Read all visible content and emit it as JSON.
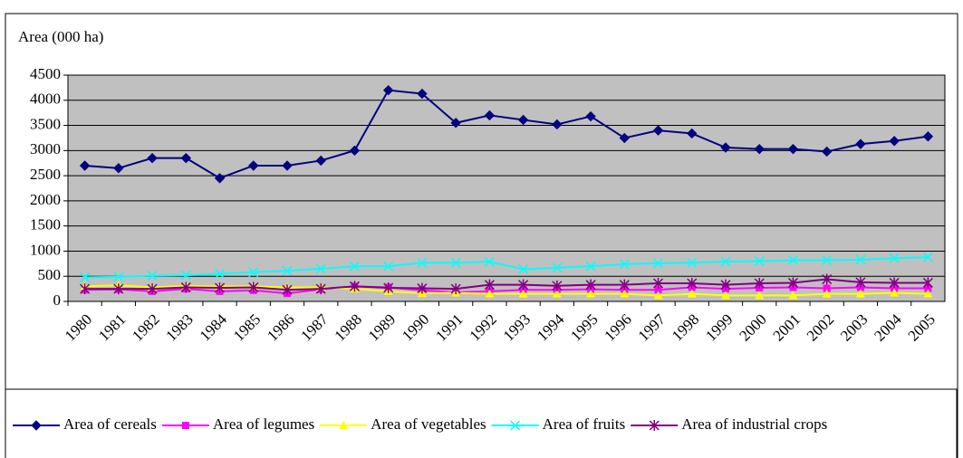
{
  "chart_data": {
    "type": "line",
    "y_label": "Area (000 ha)",
    "categories": [
      "1980",
      "1981",
      "1982",
      "1983",
      "1984",
      "1985",
      "1986",
      "1987",
      "1988",
      "1989",
      "1990",
      "1991",
      "1992",
      "1993",
      "1994",
      "1995",
      "1996",
      "1997",
      "1998",
      "1999",
      "2000",
      "2001",
      "2002",
      "2003",
      "2004",
      "2005"
    ],
    "ylim": [
      0,
      4500
    ],
    "yticks": [
      0,
      500,
      1000,
      1500,
      2000,
      2500,
      3000,
      3500,
      4000,
      4500
    ],
    "grid": true,
    "plot_background": "#c0c0c0",
    "legend": "bottom",
    "series": [
      {
        "name": "Area of cereals",
        "color": "#000080",
        "marker": "diamond",
        "values": [
          2700,
          2650,
          2850,
          2850,
          2450,
          2700,
          2700,
          2800,
          3000,
          4200,
          4130,
          3550,
          3700,
          3610,
          3520,
          3680,
          3250,
          3400,
          3340,
          3060,
          3030,
          3030,
          2980,
          3130,
          3190,
          3280
        ]
      },
      {
        "name": "Area of legumes",
        "color": "#ff00ff",
        "marker": "square",
        "values": [
          230,
          240,
          200,
          250,
          200,
          220,
          160,
          240,
          300,
          280,
          220,
          180,
          200,
          230,
          230,
          240,
          230,
          230,
          280,
          250,
          270,
          280,
          260,
          280,
          260,
          260
        ]
      },
      {
        "name": "Area of vegetables",
        "color": "#ffff00",
        "marker": "triangle",
        "values": [
          300,
          320,
          280,
          310,
          300,
          300,
          280,
          280,
          250,
          200,
          160,
          170,
          150,
          150,
          150,
          150,
          150,
          120,
          150,
          120,
          120,
          120,
          150,
          150,
          170,
          150
        ]
      },
      {
        "name": "Area of fruits",
        "color": "#00ffff",
        "marker": "x",
        "values": [
          480,
          490,
          510,
          520,
          550,
          580,
          610,
          650,
          700,
          700,
          770,
          770,
          790,
          640,
          670,
          700,
          740,
          760,
          770,
          790,
          800,
          820,
          820,
          830,
          860,
          880
        ]
      },
      {
        "name": "Area of industrial crops",
        "color": "#800080",
        "marker": "asterisk",
        "values": [
          250,
          250,
          250,
          280,
          270,
          280,
          230,
          250,
          300,
          270,
          260,
          250,
          330,
          330,
          310,
          330,
          330,
          360,
          360,
          330,
          360,
          370,
          440,
          380,
          370,
          370
        ]
      }
    ]
  }
}
